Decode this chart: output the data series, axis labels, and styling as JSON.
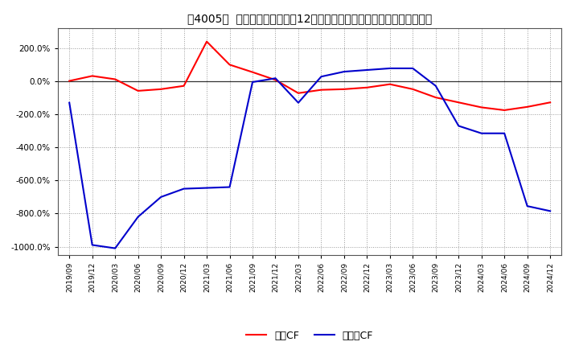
{
  "title": "［4005］  キャッシュフローの12か月移動合計の対前年同期増減率の推移",
  "bg_color": "#ffffff",
  "plot_bg_color": "#ffffff",
  "grid_color": "#999999",
  "line_color_eigyo": "#ff0000",
  "line_color_free": "#0000cc",
  "legend_eigyo": "営業CF",
  "legend_free": "フリーCF",
  "ylim": [
    -1050,
    320
  ],
  "yticks": [
    -1000,
    -800,
    -600,
    -400,
    -200,
    0,
    200
  ],
  "xtick_labels": [
    "2019/09",
    "2019/12",
    "2020/03",
    "2020/06",
    "2020/09",
    "2020/12",
    "2021/03",
    "2021/06",
    "2021/09",
    "2021/12",
    "2022/03",
    "2022/06",
    "2022/09",
    "2022/12",
    "2023/03",
    "2023/06",
    "2023/09",
    "2023/12",
    "2024/03",
    "2024/06",
    "2024/09",
    "2024/12"
  ],
  "eigyo_values": [
    2,
    32,
    12,
    -58,
    -48,
    -28,
    240,
    100,
    55,
    8,
    -72,
    -52,
    -48,
    -38,
    -18,
    -48,
    -98,
    -128,
    -158,
    -175,
    -155,
    -128
  ],
  "free_values": [
    -130,
    -990,
    -1010,
    -820,
    -700,
    -650,
    -645,
    -640,
    -5,
    18,
    -130,
    28,
    58,
    68,
    78,
    78,
    -28,
    -270,
    -315,
    -315,
    -755,
    -785
  ]
}
